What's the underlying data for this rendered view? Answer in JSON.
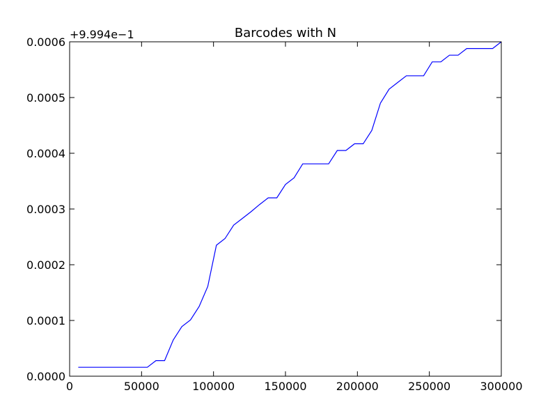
{
  "chart_data": {
    "type": "line",
    "title": "Barcodes with N",
    "xlabel": "",
    "ylabel": "",
    "y_offset_label": "+9.994e−1",
    "xlim": [
      0,
      300000
    ],
    "ylim": [
      0.0,
      0.0006
    ],
    "x_ticks": [
      0,
      50000,
      100000,
      150000,
      200000,
      250000,
      300000
    ],
    "x_tick_labels": [
      "0",
      "50000",
      "100000",
      "150000",
      "200000",
      "250000",
      "300000"
    ],
    "y_ticks": [
      0.0,
      0.0001,
      0.0002,
      0.0003,
      0.0004,
      0.0005,
      0.0006
    ],
    "y_tick_labels": [
      "0.0000",
      "0.0001",
      "0.0002",
      "0.0003",
      "0.0004",
      "0.0005",
      "0.0006"
    ],
    "grid": false,
    "series": [
      {
        "color": "#0000ff",
        "x": [
          6000,
          54000,
          60000,
          66000,
          72000,
          78000,
          84000,
          90000,
          96000,
          102000,
          108000,
          114000,
          120000,
          126000,
          132000,
          138000,
          144000,
          150000,
          156000,
          162000,
          168000,
          174000,
          180000,
          186000,
          192000,
          198000,
          204000,
          210000,
          216000,
          222000,
          228000,
          234000,
          240000,
          246000,
          252000,
          258000,
          264000,
          270000,
          276000,
          282000,
          288000,
          294000,
          300000
        ],
        "values": [
          1.6e-05,
          1.6e-05,
          2.8e-05,
          2.8e-05,
          6.5e-05,
          8.9e-05,
          0.000101,
          0.000125,
          0.000161,
          0.000235,
          0.000247,
          0.000271,
          0.000283,
          0.000295,
          0.000308,
          0.00032,
          0.00032,
          0.000344,
          0.000356,
          0.000381,
          0.000381,
          0.000381,
          0.000381,
          0.000405,
          0.000405,
          0.000417,
          0.000417,
          0.000441,
          0.00049,
          0.000515,
          0.000527,
          0.000539,
          0.000539,
          0.000539,
          0.000564,
          0.000564,
          0.000576,
          0.000576,
          0.000588,
          0.000588,
          0.000588,
          0.000588,
          0.0006
        ]
      }
    ]
  }
}
